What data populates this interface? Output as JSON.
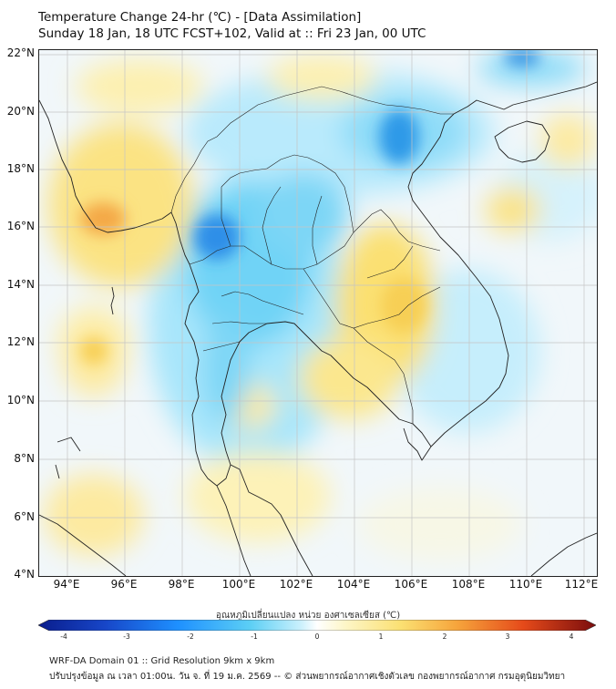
{
  "header": {
    "title_line1": "Temperature Change 24-hr (℃) - [Data Assimilation]",
    "title_line2": "Sunday 18 Jan, 18 UTC FCST+102, Valid at :: Fri 23 Jan, 00 UTC"
  },
  "map": {
    "lon_range": [
      93,
      112.5
    ],
    "lat_range": [
      4,
      22.2
    ],
    "lat_labels": [
      "22°N",
      "20°N",
      "18°N",
      "16°N",
      "14°N",
      "12°N",
      "10°N",
      "8°N",
      "6°N",
      "4°N"
    ],
    "lon_labels": [
      "94°E",
      "96°E",
      "98°E",
      "100°E",
      "102°E",
      "104°E",
      "106°E",
      "108°E",
      "110°E",
      "112°E"
    ],
    "colors": {
      "cold_strong": "#1e90ff",
      "cold": "#5ccff5",
      "cool": "#a8e6fb",
      "neutral": "#f4f8f8",
      "warm": "#fdf2a8",
      "warmer": "#fbe072",
      "hot": "#f6a53c",
      "coast": "#222222",
      "grid": "#c8c8c8"
    }
  },
  "colorbar": {
    "title": "อุณหภูมิเปลี่ยนแปลง หน่วย องศาเซลเซียส (℃)",
    "ticks": [
      "-4",
      "-3",
      "-2",
      "-1",
      "0",
      "1",
      "2",
      "3",
      "4"
    ]
  },
  "footer": {
    "line1": "WRF-DA Domain 01 :: Grid Resolution 9km x 9km",
    "line2": "ปรับปรุงข้อมูล ณ เวลา 01:00น. วัน จ. ที่ 19 ม.ค. 2569 -- © ส่วนพยากรณ์อากาศเชิงตัวเลข กองพยากรณ์อากาศ กรมอุตุนิยมวิทยา"
  }
}
